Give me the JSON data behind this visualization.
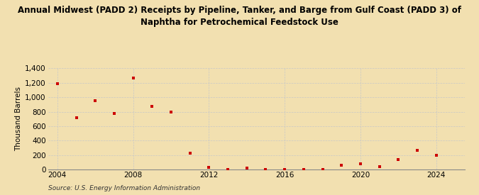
{
  "title_line1": "Annual Midwest (PADD 2) Receipts by Pipeline, Tanker, and Barge from Gulf Coast (PADD 3) of",
  "title_line2": "Naphtha for Petrochemical Feedstock Use",
  "ylabel": "Thousand Barrels",
  "source": "Source: U.S. Energy Information Administration",
  "background_color": "#f2e0b0",
  "plot_bg_color": "#f2e0b0",
  "marker_color": "#cc0000",
  "years": [
    2004,
    2005,
    2006,
    2007,
    2008,
    2009,
    2010,
    2011,
    2012,
    2013,
    2014,
    2015,
    2016,
    2017,
    2018,
    2019,
    2020,
    2021,
    2022,
    2023,
    2024
  ],
  "values": [
    1185,
    720,
    950,
    780,
    1265,
    870,
    800,
    230,
    35,
    5,
    25,
    5,
    5,
    5,
    5,
    60,
    80,
    40,
    140,
    270,
    200
  ],
  "ylim": [
    0,
    1400
  ],
  "yticks": [
    0,
    200,
    400,
    600,
    800,
    1000,
    1200,
    1400
  ],
  "xlim": [
    2003.5,
    2025.5
  ],
  "xticks": [
    2004,
    2008,
    2012,
    2016,
    2020,
    2024
  ],
  "grid_color": "#c8c8c8",
  "title_fontsize": 8.5,
  "axis_fontsize": 7.5,
  "source_fontsize": 6.5
}
